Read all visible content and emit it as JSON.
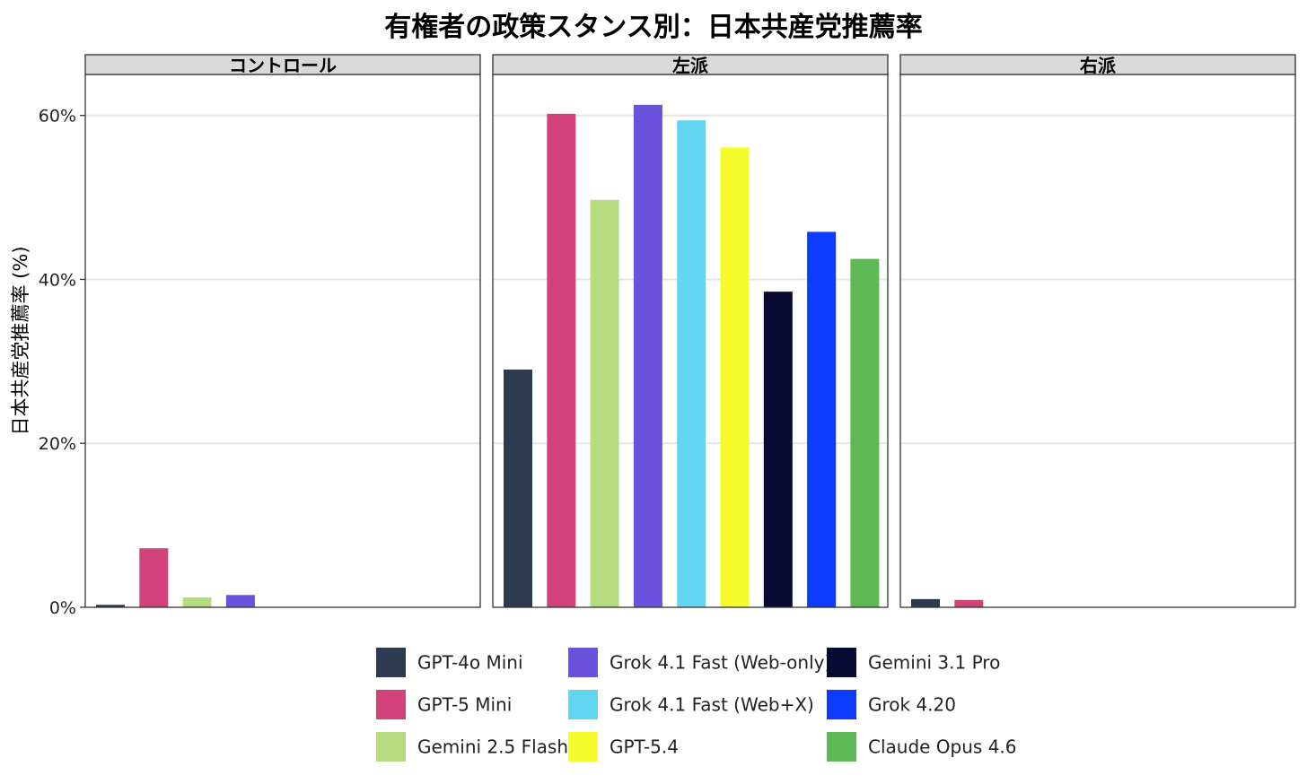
{
  "chart_data": {
    "type": "bar",
    "title": "有権者の政策スタンス別：日本共産党推薦率",
    "ylabel": "日本共産党推薦率 (%)",
    "xlabel": "",
    "ylim": [
      0,
      0.65
    ],
    "yticks": [
      {
        "value": 0,
        "label": "0%"
      },
      {
        "value": 0.2,
        "label": "20%"
      },
      {
        "value": 0.4,
        "label": "40%"
      },
      {
        "value": 0.6,
        "label": "60%"
      }
    ],
    "grid": true,
    "legend_position": "bottom",
    "facets": [
      "コントロール",
      "左派",
      "右派"
    ],
    "series": [
      {
        "name": "GPT-4o Mini",
        "color": "#2e3a4f",
        "values": [
          0.003,
          0.29,
          0.01
        ]
      },
      {
        "name": "GPT-5 Mini",
        "color": "#d4427b",
        "values": [
          0.072,
          0.602,
          0.009
        ]
      },
      {
        "name": "Gemini 2.5 Flash",
        "color": "#b7dc7f",
        "values": [
          0.012,
          0.497,
          0
        ]
      },
      {
        "name": "Grok 4.1 Fast (Web-only)",
        "color": "#6a52dc",
        "values": [
          0.015,
          0.613,
          0
        ]
      },
      {
        "name": "Grok 4.1 Fast (Web+X)",
        "color": "#62d6f0",
        "values": [
          0,
          0.594,
          0
        ]
      },
      {
        "name": "GPT-5.4",
        "color": "#f6fb2b",
        "values": [
          0,
          0.561,
          0
        ]
      },
      {
        "name": "Gemini 3.1 Pro",
        "color": "#070a33",
        "values": [
          0,
          0.385,
          0
        ]
      },
      {
        "name": "Grok 4.20",
        "color": "#0b3cff",
        "values": [
          0,
          0.458,
          0
        ]
      },
      {
        "name": "Claude Opus 4.6",
        "color": "#5db856",
        "values": [
          0,
          0.425,
          0
        ]
      }
    ]
  }
}
